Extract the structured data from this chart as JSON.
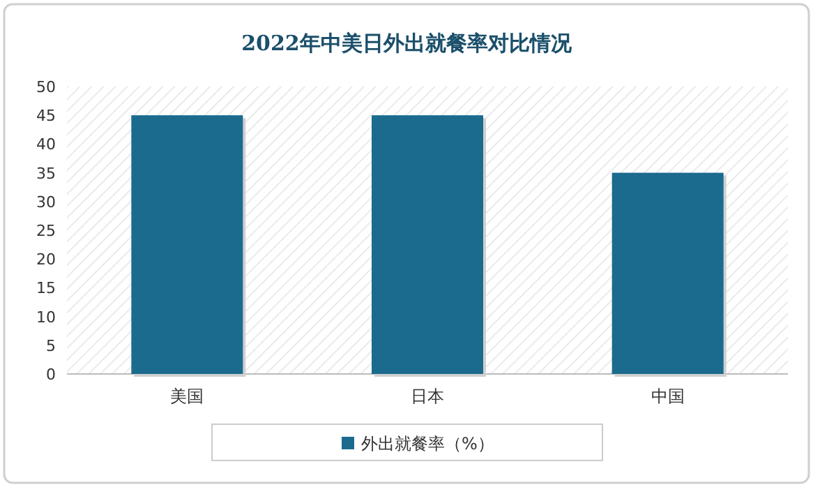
{
  "chart_data": {
    "type": "bar",
    "title": "2022年中美日外出就餐率对比情况",
    "categories": [
      "美国",
      "日本",
      "中国"
    ],
    "series": [
      {
        "name": "外出就餐率（%）",
        "color": "#1b6b8e",
        "values": [
          45,
          45,
          35
        ]
      }
    ],
    "ylim": [
      0,
      50
    ],
    "yticks": [
      0,
      5,
      10,
      15,
      20,
      25,
      30,
      35,
      40,
      45,
      50
    ],
    "grid": false,
    "legend": "bottom"
  }
}
